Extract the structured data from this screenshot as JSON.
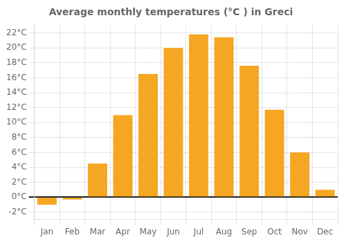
{
  "chart_data": {
    "type": "bar",
    "title": "Average monthly temperatures (°C ) in Greci",
    "categories": [
      "Jan",
      "Feb",
      "Mar",
      "Apr",
      "May",
      "Jun",
      "Jul",
      "Aug",
      "Sep",
      "Oct",
      "Nov",
      "Dec"
    ],
    "values": [
      -1.0,
      -0.3,
      4.5,
      11.0,
      16.5,
      20.0,
      21.8,
      21.4,
      17.6,
      11.7,
      6.0,
      1.0
    ],
    "color": "#F5A623",
    "ylim": [
      -3,
      23
    ],
    "yticks": [
      {
        "value": -2,
        "label": "-2°C"
      },
      {
        "value": 0,
        "label": "0°C"
      },
      {
        "value": 2,
        "label": "2°C"
      },
      {
        "value": 4,
        "label": "4°C"
      },
      {
        "value": 6,
        "label": "6°C"
      },
      {
        "value": 8,
        "label": "8°C"
      },
      {
        "value": 10,
        "label": "10°C"
      },
      {
        "value": 12,
        "label": "12°C"
      },
      {
        "value": 14,
        "label": "14°C"
      },
      {
        "value": 16,
        "label": "16°C"
      },
      {
        "value": 18,
        "label": "18°C"
      },
      {
        "value": 20,
        "label": "20°C"
      },
      {
        "value": 22,
        "label": "22°C"
      }
    ],
    "grid": true
  }
}
